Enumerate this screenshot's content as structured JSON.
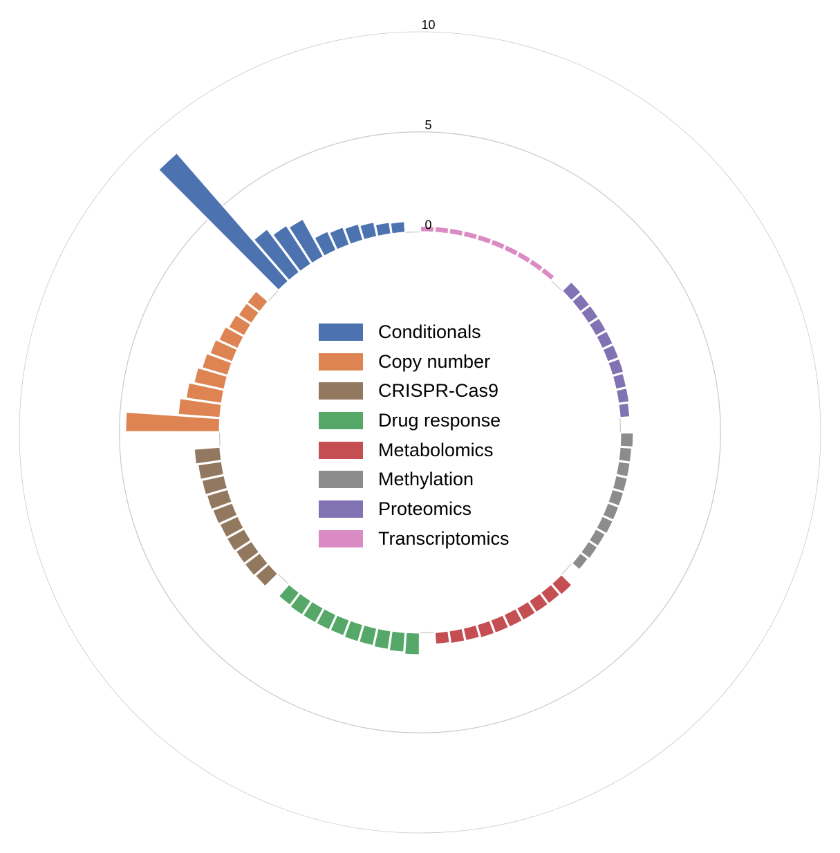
{
  "chart_data": {
    "type": "bar",
    "layout": "circular",
    "radial_axis": {
      "ticks": [
        0,
        5,
        10
      ],
      "range": [
        0,
        10
      ]
    },
    "groups": [
      {
        "name": "Conditionals",
        "color": "#4c72b0",
        "values": [
          0.55,
          0.6,
          0.75,
          0.85,
          0.95,
          1.05,
          2.15,
          2.3,
          2.7,
          8.5
        ]
      },
      {
        "name": "Copy number",
        "color": "#dd8452",
        "values": [
          0.8,
          0.8,
          0.9,
          1.05,
          1.2,
          1.35,
          1.55,
          1.8,
          2.1,
          4.7
        ]
      },
      {
        "name": "CRISPR-Cas9",
        "color": "#937860",
        "values": [
          1.3,
          1.2,
          1.15,
          1.1,
          1.05,
          1.0,
          1.0,
          0.95,
          0.95,
          0.9
        ]
      },
      {
        "name": "Drug response",
        "color": "#55a868",
        "values": [
          0.8,
          0.85,
          0.85,
          0.85,
          0.85,
          0.9,
          0.9,
          0.95,
          1.0,
          1.1
        ]
      },
      {
        "name": "Metabolomics",
        "color": "#c44e52",
        "values": [
          0.75,
          0.7,
          0.7,
          0.7,
          0.7,
          0.7,
          0.7,
          0.65,
          0.65,
          0.6
        ]
      },
      {
        "name": "Methylation",
        "color": "#8c8c8c",
        "values": [
          0.65,
          0.6,
          0.6,
          0.6,
          0.6,
          0.6,
          0.6,
          0.55,
          0.55,
          0.5
        ]
      },
      {
        "name": "Proteomics",
        "color": "#8172b3",
        "values": [
          0.65,
          0.6,
          0.6,
          0.6,
          0.6,
          0.6,
          0.6,
          0.55,
          0.55,
          0.5
        ]
      },
      {
        "name": "Transcriptomics",
        "color": "#da8bc3",
        "values": [
          0.3,
          0.3,
          0.3,
          0.3,
          0.3,
          0.3,
          0.3,
          0.3,
          0.3,
          0.3
        ]
      }
    ],
    "legend": "center"
  }
}
